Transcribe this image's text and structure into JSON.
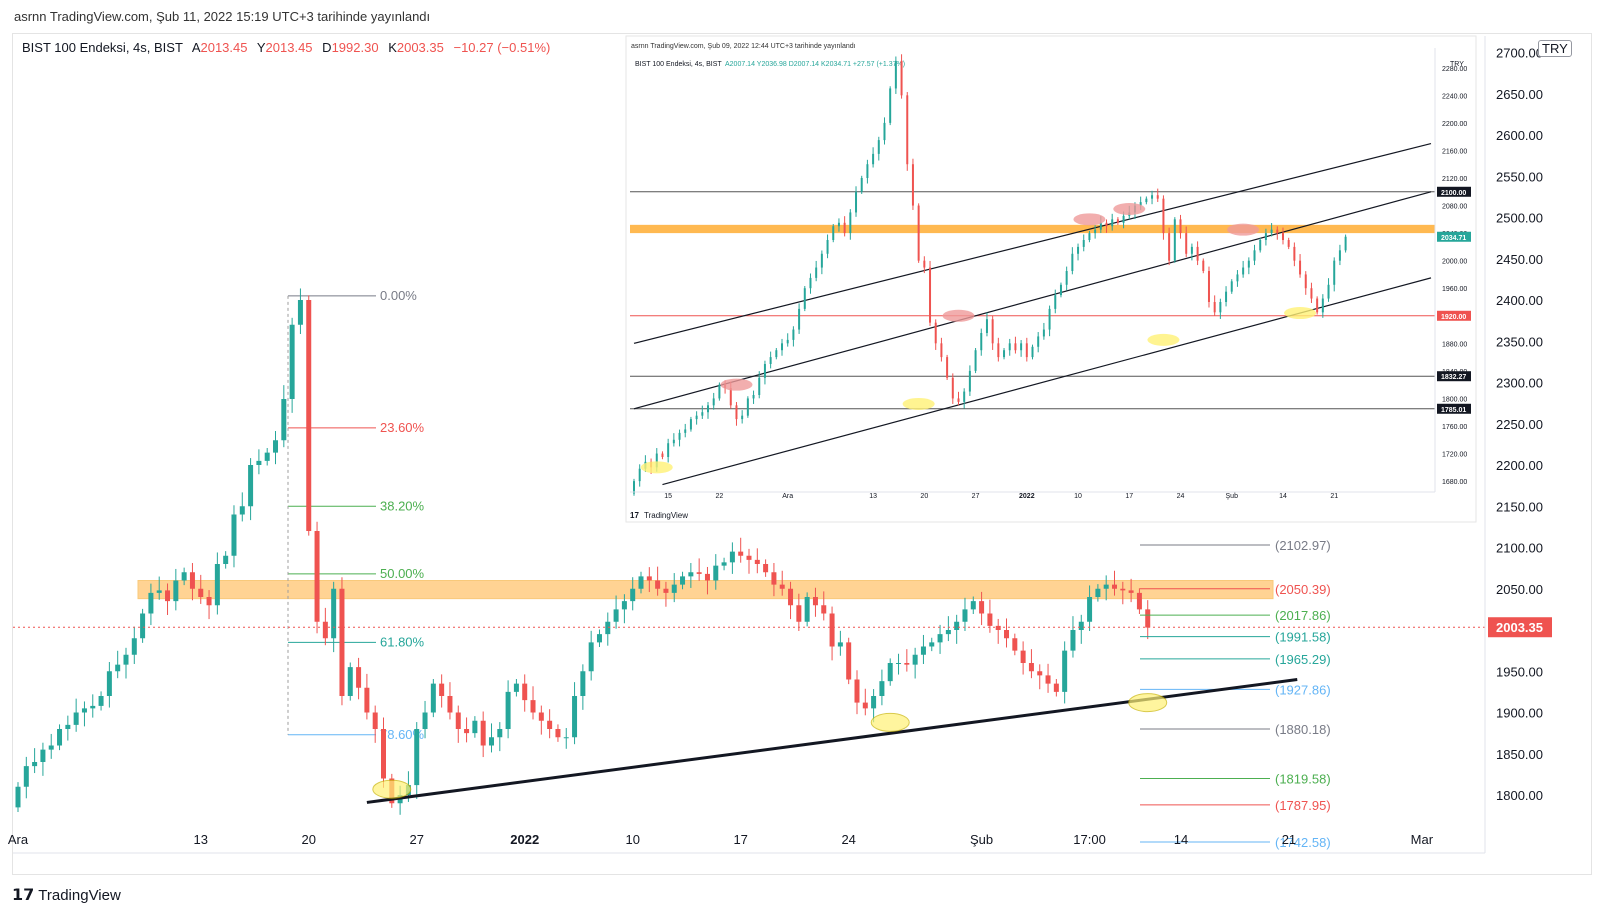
{
  "publish_note": "asrnn TradingView.com, Şub 11, 2022 15:19 UTC+3 tarihinde yayınlandı",
  "legend": {
    "symbol": "BIST 100 Endeksi, 4s, BIST",
    "open_label": "A",
    "open": "2013.45",
    "high_label": "Y",
    "high": "2013.45",
    "low_label": "D",
    "low": "1992.30",
    "close_label": "K",
    "close": "2003.35",
    "change": "−10.27 (−0.51%)"
  },
  "currency": "TRY",
  "brand": "TradingView",
  "colors": {
    "up": "#26a69a",
    "down": "#ef5350",
    "zone": "#ffb74d",
    "support_line": "#131722",
    "ellipse_support": "#fff176",
    "ellipse_resistance": "#ef9a9a"
  },
  "chart_data": [
    {
      "type": "candlestick",
      "title": "BIST 100 Endeksi, 4s, BIST",
      "price_axis": {
        "ticks": [
          "2700.00",
          "2650.00",
          "2600.00",
          "2550.00",
          "2500.00",
          "2450.00",
          "2400.00",
          "2350.00",
          "2300.00",
          "2250.00",
          "2200.00",
          "2150.00",
          "2100.00",
          "2050.00",
          "2000.00",
          "1950.00",
          "1900.00",
          "1850.00",
          "1800.00"
        ],
        "ylim": [
          1760,
          2720
        ],
        "last_price": "2003.35"
      },
      "time_axis": {
        "ticks": [
          "Ara",
          "13",
          "20",
          "27",
          "2022",
          "10",
          "17",
          "24",
          "Şub",
          "17:00",
          "14",
          "21",
          "Mar"
        ],
        "tick_index": [
          0,
          22,
          35,
          48,
          61,
          74,
          87,
          100,
          116,
          129,
          140,
          153,
          169
        ],
        "n_slots": 176
      },
      "closes": [
        1810,
        1835,
        1840,
        1855,
        1860,
        1880,
        1885,
        1900,
        1905,
        1908,
        1920,
        1950,
        1958,
        1970,
        1990,
        2020,
        2045,
        2048,
        2035,
        2060,
        2070,
        2050,
        2040,
        2030,
        2080,
        2090,
        2140,
        2150,
        2200,
        2205,
        2215,
        2230,
        2280,
        2370,
        2400,
        2120,
        2010,
        1990,
        2050,
        1920,
        1955,
        1930,
        1900,
        1880,
        1820,
        1790,
        1800,
        1812,
        1880,
        1900,
        1935,
        1920,
        1900,
        1880,
        1875,
        1890,
        1860,
        1870,
        1880,
        1925,
        1935,
        1915,
        1900,
        1890,
        1880,
        1870,
        1870,
        1920,
        1950,
        1985,
        1995,
        2010,
        2025,
        2035,
        2050,
        2065,
        2060,
        2050,
        2045,
        2055,
        2065,
        2070,
        2068,
        2060,
        2078,
        2082,
        2095,
        2090,
        2085,
        2080,
        2070,
        2055,
        2050,
        2030,
        2010,
        2040,
        2030,
        2020,
        1980,
        1985,
        1940,
        1912,
        1905,
        1920,
        1938,
        1960,
        1960,
        1958,
        1970,
        1980,
        1985,
        1995,
        2000,
        2010,
        2025,
        2035,
        2020,
        2005,
        2000,
        1990,
        1975,
        1960,
        1950,
        1945,
        1935,
        1925,
        1975,
        2000,
        2010,
        2040,
        2050,
        2055,
        2050,
        2048,
        2045,
        2025,
        2003
      ],
      "fibonacci": {
        "levels": [
          "0.00%",
          "23.60%",
          "38.20%",
          "50.00%",
          "61.80%",
          "78.60%"
        ],
        "prices": [
          2405,
          2245,
          2150,
          2068,
          1985,
          1873
        ]
      },
      "projection_levels": [
        {
          "label": "(2102.97)",
          "value": 2103
        },
        {
          "label": "(2050.39)",
          "value": 2050
        },
        {
          "label": "(2017.86)",
          "value": 2018
        },
        {
          "label": "(1991.58)",
          "value": 1992
        },
        {
          "label": "(1965.29)",
          "value": 1965
        },
        {
          "label": "(1927.86)",
          "value": 1928
        },
        {
          "label": "(1880.18)",
          "value": 1880
        },
        {
          "label": "(1819.58)",
          "value": 1820
        },
        {
          "label": "(1787.95)",
          "value": 1788
        },
        {
          "label": "(1742.58)",
          "value": 1743
        }
      ],
      "resistance_zone": [
        2038,
        2060
      ],
      "support_trendline": [
        {
          "slot": 42,
          "value": 1791
        },
        {
          "slot": 154,
          "value": 1940
        }
      ]
    },
    {
      "type": "candlestick",
      "inset": true,
      "publish_note": "asrnn TradingView.com, Şub 09, 2022 12:44 UTC+3 tarihinde yayınlandı",
      "legend": "BIST 100 Endeksi, 4s, BIST",
      "legend_values": "A2007.14  Y2036.98  D2007.14  K2034.71  +27.57 (+1.37%)",
      "currency": "TRY",
      "brand": "TradingView",
      "price_axis": {
        "ticks": [
          "2280.00",
          "2240.00",
          "2200.00",
          "2160.00",
          "2120.00",
          "2080.00",
          "2040.00",
          "2000.00",
          "1960.00",
          "1920.00",
          "1880.00",
          "1840.00",
          "1800.00",
          "1760.00",
          "1720.00",
          "1680.00"
        ],
        "ylim": [
          1670,
          2300
        ]
      },
      "time_axis": {
        "ticks": [
          "15",
          "22",
          "Ara",
          "13",
          "20",
          "27",
          "2022",
          "10",
          "17",
          "24",
          "Şub",
          "14",
          "21"
        ],
        "tick_index": [
          6,
          15,
          27,
          42,
          51,
          60,
          69,
          78,
          87,
          96,
          105,
          114,
          123
        ],
        "n_slots": 140
      },
      "price_tags": [
        {
          "label": "2100.00",
          "value": 2100
        },
        {
          "label": "2034.71",
          "value": 2034.71
        },
        {
          "label": "1920.00",
          "value": 1920
        },
        {
          "label": "1832.27",
          "value": 1832.27
        },
        {
          "label": "1785.01",
          "value": 1785.01
        }
      ],
      "closes": [
        1680,
        1698,
        1708,
        1700,
        1720,
        1715,
        1735,
        1740,
        1750,
        1755,
        1770,
        1775,
        1780,
        1790,
        1800,
        1820,
        1815,
        1790,
        1770,
        1775,
        1800,
        1805,
        1830,
        1850,
        1860,
        1870,
        1880,
        1885,
        1900,
        1930,
        1960,
        1975,
        1990,
        2010,
        2030,
        2050,
        2055,
        2040,
        2070,
        2100,
        2120,
        2140,
        2155,
        2175,
        2200,
        2250,
        2290,
        2240,
        2140,
        2080,
        2000,
        1990,
        1910,
        1880,
        1860,
        1830,
        1800,
        1795,
        1810,
        1840,
        1870,
        1895,
        1915,
        1880,
        1860,
        1870,
        1880,
        1870,
        1880,
        1860,
        1875,
        1890,
        1900,
        1930,
        1950,
        1965,
        1985,
        2010,
        2020,
        2030,
        2040,
        2045,
        2055,
        2050,
        2060,
        2055,
        2065,
        2070,
        2080,
        2085,
        2090,
        2095,
        2090,
        2040,
        2000,
        2060,
        2040,
        2010,
        2020,
        2000,
        1985,
        1940,
        1925,
        1940,
        1955,
        1970,
        1980,
        1990,
        2000,
        2015,
        2030,
        2040,
        2045,
        2040,
        2030,
        2020,
        2000,
        1980,
        1960,
        1945,
        1925,
        1945,
        1965,
        2000,
        2015,
        2034.71
      ],
      "horizontal_lines": [
        2100,
        1920,
        1832.27,
        1785.01
      ],
      "resistance_zone": [
        2040,
        2052
      ],
      "channel_lines": [
        [
          {
            "slot": 0,
            "value": 1880
          },
          {
            "slot": 140,
            "value": 2170
          }
        ],
        [
          {
            "slot": 0,
            "value": 1785
          },
          {
            "slot": 140,
            "value": 2100
          }
        ],
        [
          {
            "slot": 5,
            "value": 1675
          },
          {
            "slot": 140,
            "value": 1975
          }
        ]
      ]
    }
  ]
}
